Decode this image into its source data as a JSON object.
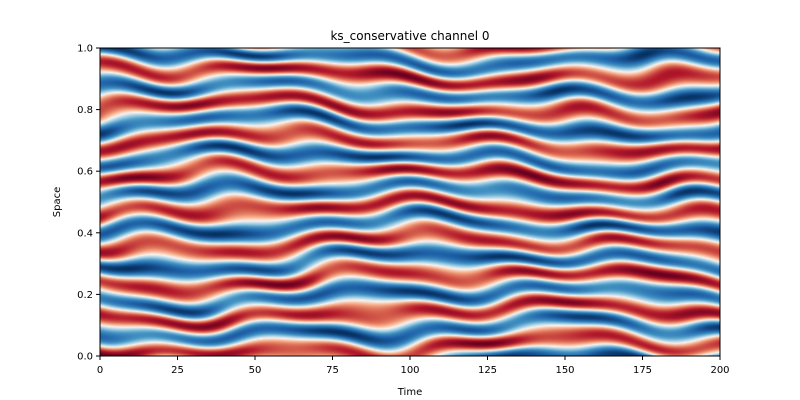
{
  "chart_data": {
    "type": "heatmap",
    "title": "ks_conservative channel 0",
    "xlabel": "Time",
    "ylabel": "Space",
    "xlim": [
      0,
      200
    ],
    "ylim": [
      0.0,
      1.0
    ],
    "x_ticks": [
      0,
      25,
      50,
      75,
      100,
      125,
      150,
      175,
      200
    ],
    "x_tick_labels": [
      "0",
      "25",
      "50",
      "75",
      "100",
      "125",
      "150",
      "175",
      "200"
    ],
    "y_ticks": [
      0.0,
      0.2,
      0.4,
      0.6,
      0.8,
      1.0
    ],
    "y_tick_labels": [
      "0.0",
      "0.2",
      "0.4",
      "0.6",
      "0.8",
      "1.0"
    ],
    "colormap": "RdBu_r",
    "colorbar": false,
    "grid": false,
    "field_description": "Kuramoto–Sivashinsky spatiotemporal field: roughly 9 nearly-horizontal alternating red/blue bands across space that drift slowly and merge/split over time, with white transitions between bands."
  }
}
